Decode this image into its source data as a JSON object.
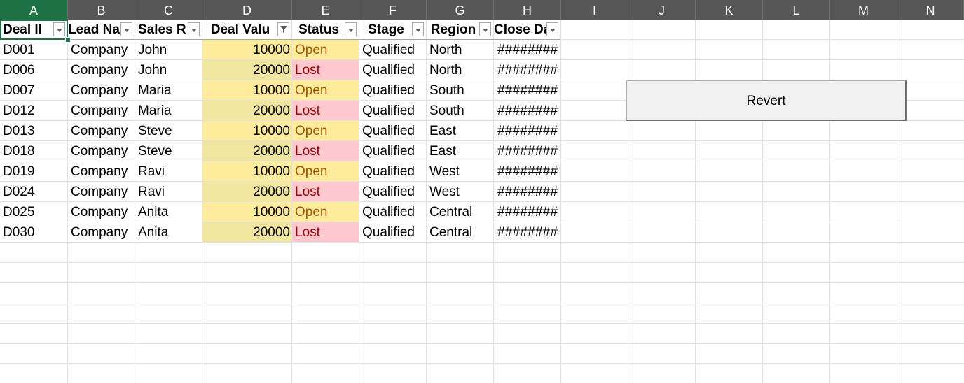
{
  "columns": [
    "A",
    "B",
    "C",
    "D",
    "E",
    "F",
    "G",
    "H",
    "I",
    "J",
    "K",
    "L",
    "M",
    "N"
  ],
  "headers": {
    "deal_id": "Deal II",
    "lead_name": "Lead Na",
    "sales_rep": "Sales R",
    "deal_value": "Deal Valu",
    "status": "Status",
    "stage": "Stage",
    "region": "Region",
    "close_date": "Close Da"
  },
  "rows": [
    {
      "deal_id": "D001",
      "lead_name": "Company",
      "sales_rep": "John",
      "deal_value": "10000",
      "status": "Open",
      "stage": "Qualified",
      "region": "North",
      "close_date": "########"
    },
    {
      "deal_id": "D006",
      "lead_name": "Company",
      "sales_rep": "John",
      "deal_value": "20000",
      "status": "Lost",
      "stage": "Qualified",
      "region": "North",
      "close_date": "########"
    },
    {
      "deal_id": "D007",
      "lead_name": "Company",
      "sales_rep": "Maria",
      "deal_value": "10000",
      "status": "Open",
      "stage": "Qualified",
      "region": "South",
      "close_date": "########"
    },
    {
      "deal_id": "D012",
      "lead_name": "Company",
      "sales_rep": "Maria",
      "deal_value": "20000",
      "status": "Lost",
      "stage": "Qualified",
      "region": "South",
      "close_date": "########"
    },
    {
      "deal_id": "D013",
      "lead_name": "Company",
      "sales_rep": "Steve",
      "deal_value": "10000",
      "status": "Open",
      "stage": "Qualified",
      "region": "East",
      "close_date": "########"
    },
    {
      "deal_id": "D018",
      "lead_name": "Company",
      "sales_rep": "Steve",
      "deal_value": "20000",
      "status": "Lost",
      "stage": "Qualified",
      "region": "East",
      "close_date": "########"
    },
    {
      "deal_id": "D019",
      "lead_name": "Company",
      "sales_rep": "Ravi",
      "deal_value": "10000",
      "status": "Open",
      "stage": "Qualified",
      "region": "West",
      "close_date": "########"
    },
    {
      "deal_id": "D024",
      "lead_name": "Company",
      "sales_rep": "Ravi",
      "deal_value": "20000",
      "status": "Lost",
      "stage": "Qualified",
      "region": "West",
      "close_date": "########"
    },
    {
      "deal_id": "D025",
      "lead_name": "Company",
      "sales_rep": "Anita",
      "deal_value": "10000",
      "status": "Open",
      "stage": "Qualified",
      "region": "Central",
      "close_date": "########"
    },
    {
      "deal_id": "D030",
      "lead_name": "Company",
      "sales_rep": "Anita",
      "deal_value": "20000",
      "status": "Lost",
      "stage": "Qualified",
      "region": "Central",
      "close_date": "########"
    }
  ],
  "filter_buttons": [
    "chevron-down-icon",
    "chevron-down-icon",
    "chevron-down-icon",
    "filter-icon",
    "chevron-down-icon",
    "chevron-down-icon",
    "chevron-down-icon",
    "chevron-down-icon"
  ],
  "colors": {
    "open_fill": "#ffeb9c",
    "open_text": "#9c5700",
    "lost_fill": "#ffc7ce",
    "lost_text": "#9c0006",
    "value_fill": "#f0e6a0",
    "header_bar": "#575757",
    "active_column": "#1e7145"
  },
  "revert_button": {
    "label": "Revert"
  }
}
